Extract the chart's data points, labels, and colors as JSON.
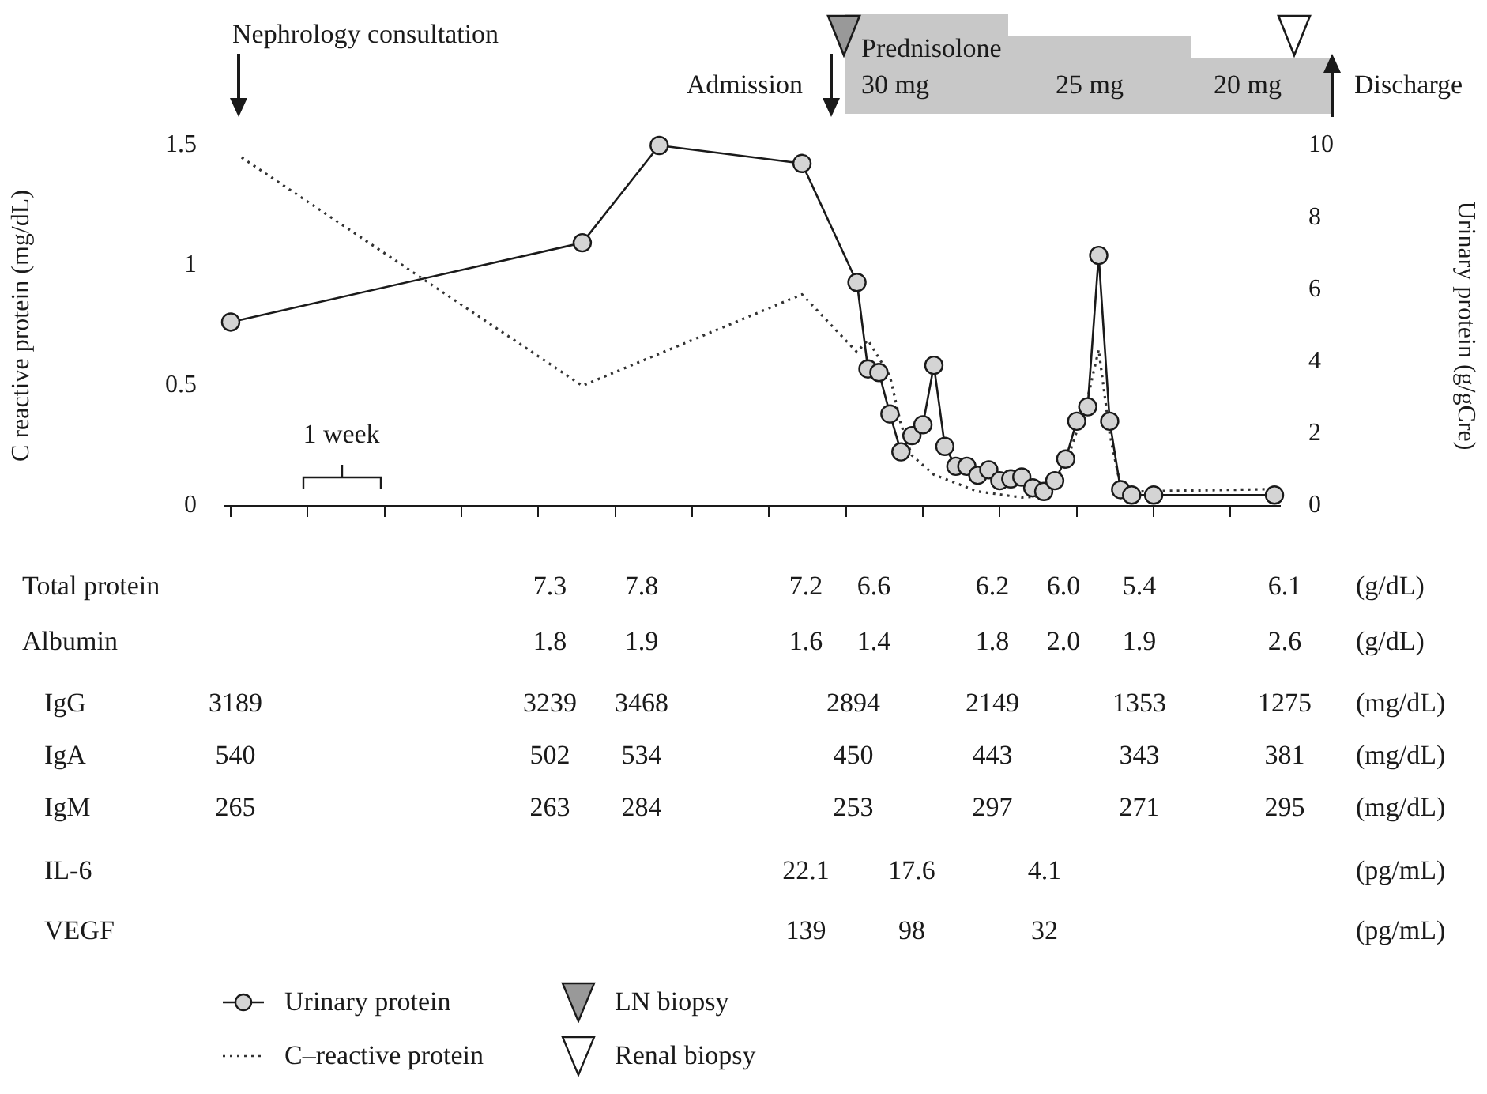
{
  "chart_data": [
    {
      "type": "line",
      "ylabel": "C reactive protein (mg/dL)",
      "y2label": "Urinary protein (g/gCre)",
      "categories": [
        null,
        null,
        null,
        null,
        null,
        null,
        null,
        null,
        null,
        null,
        null,
        null,
        null,
        null,
        null,
        null,
        null,
        null,
        null,
        null,
        null,
        null,
        null,
        null,
        null,
        null,
        null,
        null,
        null,
        null,
        null,
        null,
        null,
        null,
        null,
        null,
        null,
        null,
        null,
        null,
        null,
        null,
        null,
        null,
        null,
        null,
        null,
        null,
        null,
        null,
        null,
        null,
        null,
        null,
        null,
        null,
        null,
        null,
        null,
        null,
        null,
        null,
        null,
        null,
        null,
        null,
        null,
        null,
        null,
        null,
        null,
        null,
        null,
        null,
        null,
        null,
        null,
        null,
        null,
        null,
        null,
        null,
        null,
        null,
        null,
        null,
        null,
        null,
        null,
        null,
        null,
        null,
        null,
        null,
        null,
        null
      ],
      "ylim": [
        0,
        1.5
      ],
      "yticks": [
        0,
        0.5,
        1,
        1.5
      ],
      "y2lim": [
        0,
        10
      ],
      "y2ticks": [
        0,
        2,
        4,
        6,
        8,
        10
      ],
      "legend": "bottom",
      "series": [
        {
          "name": "Urinary protein",
          "type": "line",
          "axis": "y2",
          "color": "#1a1a1a",
          "marker": "circle",
          "line_style": "solid",
          "values": [
            5.1,
            null,
            null,
            null,
            null,
            null,
            null,
            null,
            null,
            null,
            null,
            null,
            null,
            null,
            null,
            null,
            null,
            null,
            null,
            null,
            null,
            null,
            null,
            null,
            null,
            null,
            null,
            null,
            null,
            null,
            null,
            null,
            7.3,
            null,
            null,
            null,
            null,
            null,
            null,
            10,
            null,
            null,
            null,
            null,
            null,
            null,
            null,
            null,
            null,
            null,
            null,
            null,
            9.5,
            null,
            null,
            null,
            null,
            6.2,
            3.8,
            3.7,
            2.55,
            1.5,
            1.95,
            2.25,
            3.9,
            1.65,
            1.1,
            1.1,
            0.85,
            1.0,
            0.7,
            0.75,
            0.8,
            0.5,
            0.4,
            0.7,
            1.3,
            2.35,
            2.75,
            6.95,
            2.35,
            0.45,
            0.3,
            null,
            0.3,
            null,
            null,
            null,
            null,
            null,
            null,
            null,
            null,
            null,
            null,
            0.3
          ]
        },
        {
          "name": "C–reactive protein",
          "type": "line",
          "axis": "y",
          "color": "#333333",
          "marker": "none",
          "line_style": "dotted",
          "values": [
            null,
            1.45,
            null,
            null,
            null,
            null,
            null,
            null,
            null,
            null,
            null,
            null,
            null,
            null,
            null,
            null,
            null,
            null,
            null,
            null,
            null,
            null,
            null,
            null,
            null,
            null,
            null,
            null,
            null,
            null,
            null,
            null,
            0.5,
            null,
            null,
            null,
            null,
            null,
            null,
            null,
            null,
            null,
            null,
            null,
            null,
            null,
            null,
            null,
            null,
            null,
            null,
            null,
            0.88,
            null,
            null,
            null,
            null,
            0.64,
            0.69,
            null,
            0.54,
            0.34,
            0.21,
            null,
            0.13,
            null,
            null,
            null,
            0.06,
            null,
            null,
            null,
            0.035,
            null,
            0.04,
            null,
            0.17,
            null,
            0.45,
            0.65,
            0.3,
            0.08,
            0.06,
            null,
            null,
            null,
            null,
            null,
            null,
            null,
            null,
            null,
            null,
            null,
            null,
            0.07
          ]
        }
      ],
      "annotations": [
        "Nephrology consultation",
        "Admission",
        "Discharge",
        "Prednisolone",
        "30 mg",
        "25 mg",
        "20 mg",
        "1 week",
        "LN biopsy",
        "Renal biopsy"
      ]
    },
    {
      "type": "other",
      "categories": [
        null,
        null,
        null,
        null,
        null,
        null,
        null,
        null,
        null,
        null,
        null,
        null
      ],
      "y_categories": [
        "Total protein",
        "Albumin",
        "IgG",
        "IgA",
        "IgM",
        "IL-6",
        "VEGF"
      ],
      "y2_categories": [
        "(g/dL)",
        "(g/dL)",
        "(mg/dL)",
        "(mg/dL)",
        "(mg/dL)",
        "(pg/mL)",
        "(pg/mL)"
      ],
      "cell_labels": [
        [
          null,
          "7.3",
          "7.8",
          "7.2",
          null,
          "6.6",
          null,
          "6.2",
          null,
          "6.0",
          "5.4",
          "6.1"
        ],
        [
          null,
          "1.8",
          "1.9",
          "1.6",
          null,
          "1.4",
          null,
          "1.8",
          null,
          "2.0",
          "1.9",
          "2.6"
        ],
        [
          "3189",
          "3239",
          "3468",
          null,
          "2894",
          null,
          null,
          "2149",
          null,
          null,
          "1353",
          "1275"
        ],
        [
          "540",
          "502",
          "534",
          null,
          "450",
          null,
          null,
          "443",
          null,
          null,
          "343",
          "381"
        ],
        [
          "265",
          "263",
          "284",
          null,
          "253",
          null,
          null,
          "297",
          null,
          null,
          "271",
          "295"
        ],
        [
          null,
          null,
          null,
          "22.1",
          null,
          null,
          "17.6",
          null,
          "4.1",
          null,
          null,
          null
        ],
        [
          null,
          null,
          null,
          "139",
          null,
          null,
          "98",
          null,
          "32",
          null,
          null,
          null
        ]
      ]
    }
  ]
}
